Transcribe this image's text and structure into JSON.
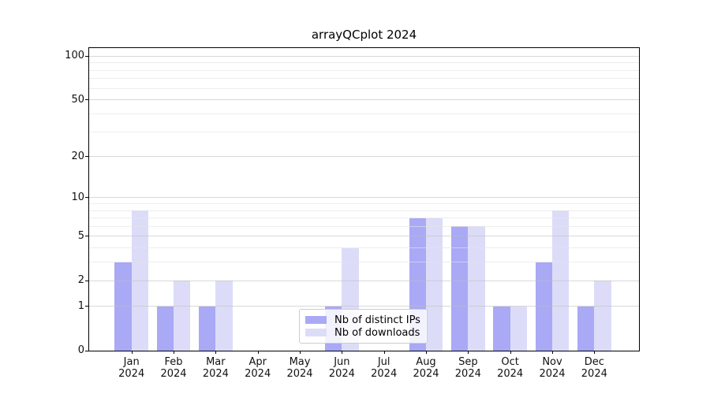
{
  "title": "arrayQCplot 2024",
  "chart_data": {
    "type": "bar",
    "title": "arrayQCplot 2024",
    "categories": [
      "Jan",
      "Feb",
      "Mar",
      "Apr",
      "May",
      "Jun",
      "Jul",
      "Aug",
      "Sep",
      "Oct",
      "Nov",
      "Dec"
    ],
    "year_label": "2024",
    "series": [
      {
        "name": "Nb of distinct IPs",
        "color": "#a9a9f6",
        "values": [
          3,
          1,
          1,
          0,
          0,
          1,
          0,
          7,
          6,
          1,
          3,
          1
        ]
      },
      {
        "name": "Nb of downloads",
        "color": "#dcdcf9",
        "values": [
          8,
          2,
          2,
          0,
          0,
          4,
          0,
          7,
          6,
          1,
          8,
          2
        ]
      }
    ],
    "xlabel": "",
    "ylabel": "",
    "yscale": "log10(1+x)",
    "ylim": [
      0,
      112
    ],
    "ytick_labels": [
      0,
      1,
      2,
      5,
      10,
      20,
      50,
      100
    ],
    "minor_yticks": [
      3,
      4,
      6,
      7,
      8,
      9,
      30,
      40,
      60,
      70,
      80,
      90
    ],
    "grid": true,
    "legend_position": "lower center",
    "colors": {
      "axis": "#000000",
      "major_grid": "#cfcfcf",
      "minor_grid": "#ececec",
      "background": "#ffffff"
    }
  }
}
